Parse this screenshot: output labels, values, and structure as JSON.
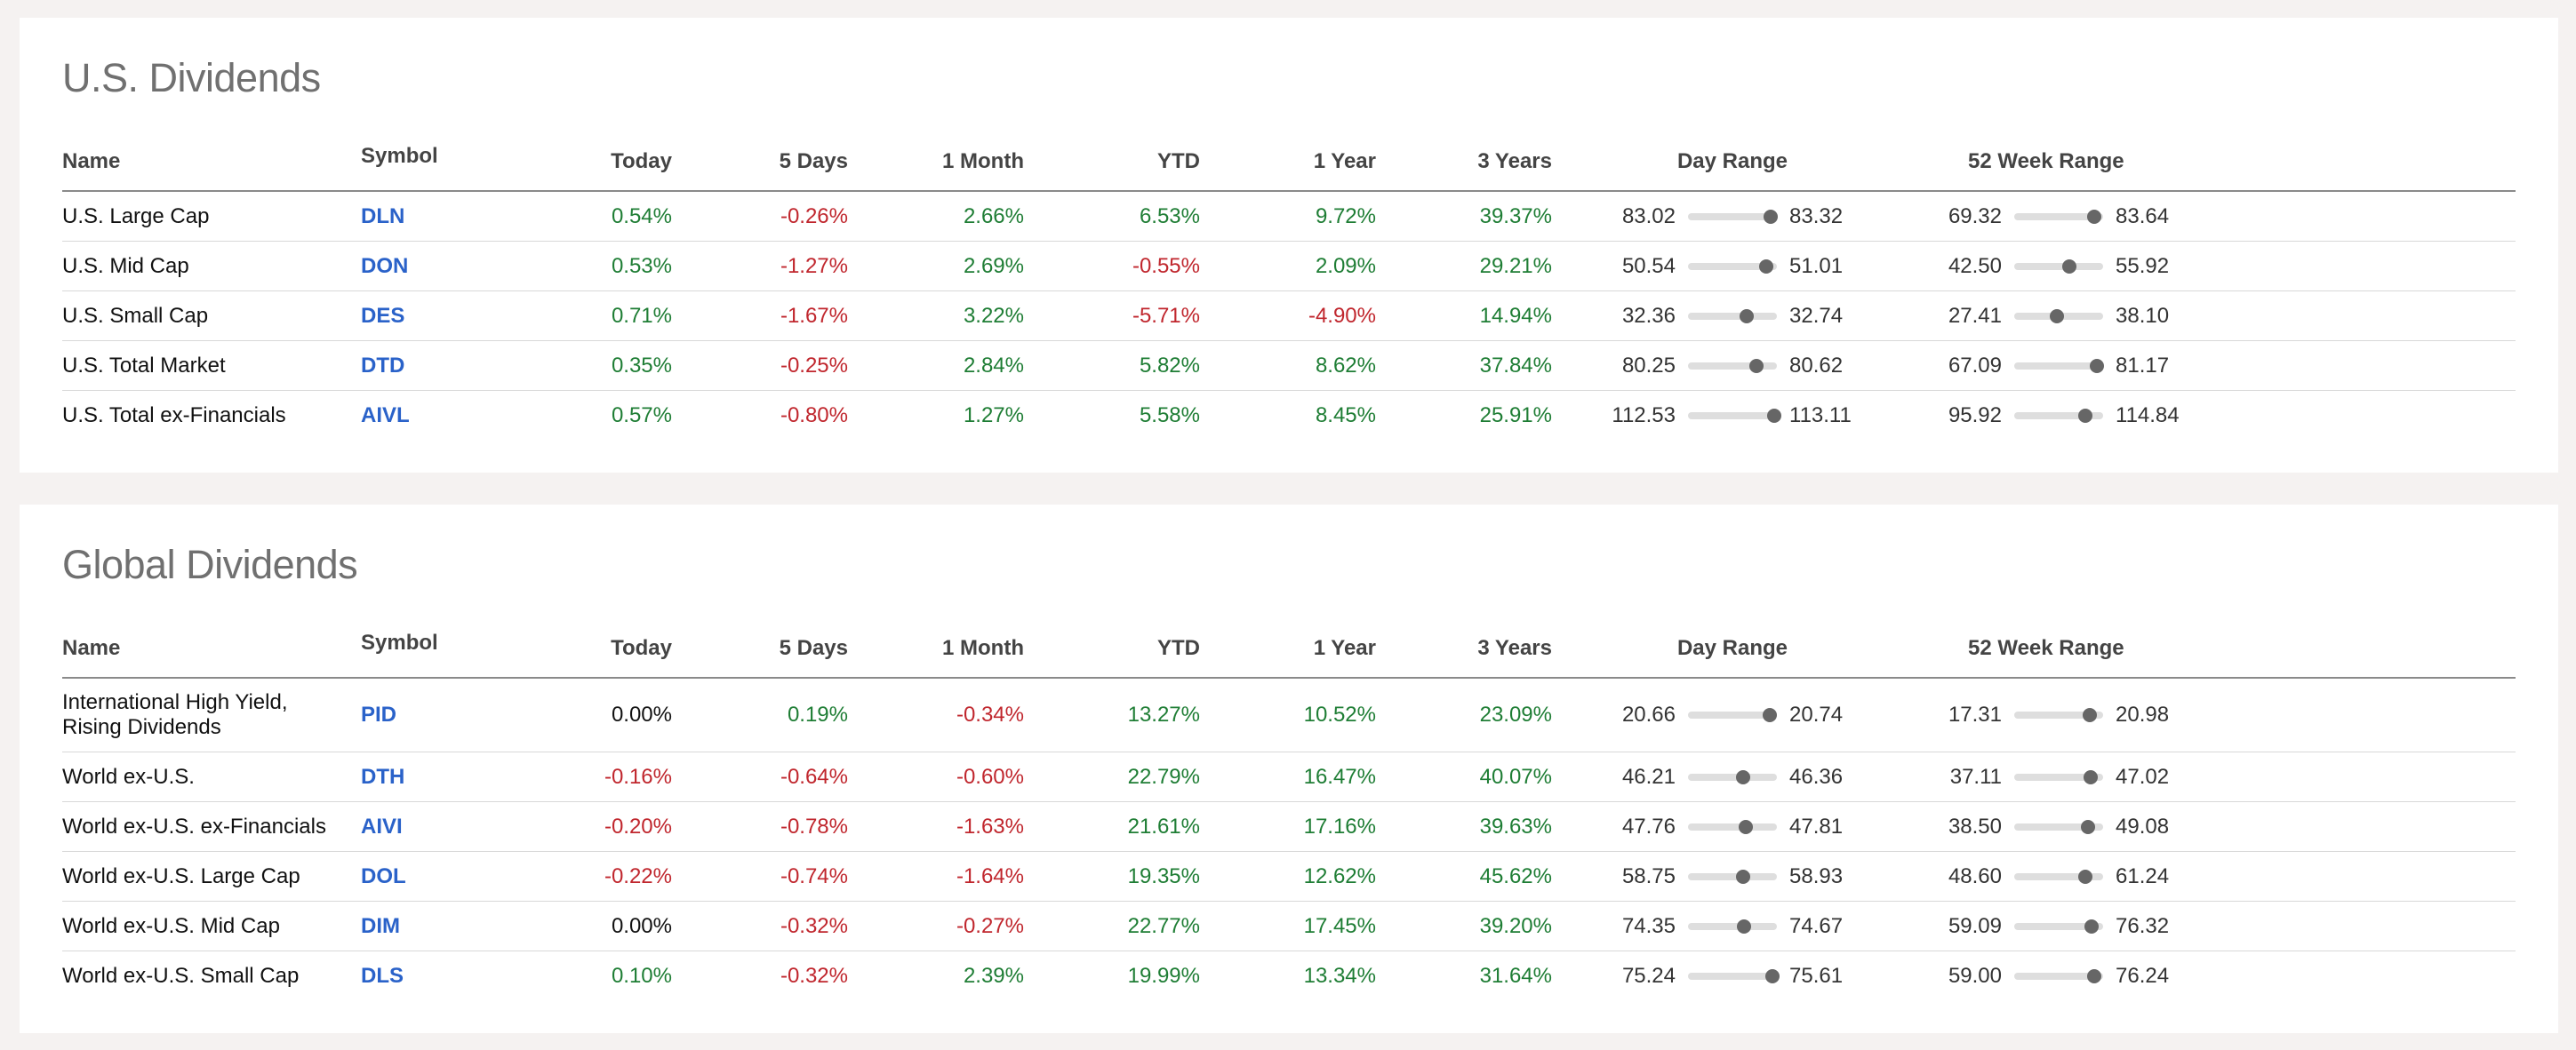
{
  "columns": [
    "Name",
    "Symbol",
    "Today",
    "5 Days",
    "1 Month",
    "YTD",
    "1 Year",
    "3 Years",
    "Day Range",
    "52 Week Range"
  ],
  "sections": [
    {
      "title": "U.S. Dividends",
      "rows": [
        {
          "name": "U.S. Large Cap",
          "symbol": "DLN",
          "today": "0.54%",
          "d5": "-0.26%",
          "m1": "2.66%",
          "ytd": "6.53%",
          "y1": "9.72%",
          "y3": "39.37%",
          "day_low": "83.02",
          "day_high": "83.32",
          "day_pos": 0.93,
          "wk_low": "69.32",
          "wk_high": "83.64",
          "wk_pos": 0.9
        },
        {
          "name": "U.S. Mid Cap",
          "symbol": "DON",
          "today": "0.53%",
          "d5": "-1.27%",
          "m1": "2.69%",
          "ytd": "-0.55%",
          "y1": "2.09%",
          "y3": "29.21%",
          "day_low": "50.54",
          "day_high": "51.01",
          "day_pos": 0.88,
          "wk_low": "42.50",
          "wk_high": "55.92",
          "wk_pos": 0.62
        },
        {
          "name": "U.S. Small Cap",
          "symbol": "DES",
          "today": "0.71%",
          "d5": "-1.67%",
          "m1": "3.22%",
          "ytd": "-5.71%",
          "y1": "-4.90%",
          "y3": "14.94%",
          "day_low": "32.36",
          "day_high": "32.74",
          "day_pos": 0.66,
          "wk_low": "27.41",
          "wk_high": "38.10",
          "wk_pos": 0.48
        },
        {
          "name": "U.S. Total Market",
          "symbol": "DTD",
          "today": "0.35%",
          "d5": "-0.25%",
          "m1": "2.84%",
          "ytd": "5.82%",
          "y1": "8.62%",
          "y3": "37.84%",
          "day_low": "80.25",
          "day_high": "80.62",
          "day_pos": 0.77,
          "wk_low": "67.09",
          "wk_high": "81.17",
          "wk_pos": 0.93
        },
        {
          "name": "U.S. Total ex-Financials",
          "symbol": "AIVL",
          "today": "0.57%",
          "d5": "-0.80%",
          "m1": "1.27%",
          "ytd": "5.58%",
          "y1": "8.45%",
          "y3": "25.91%",
          "day_low": "112.53",
          "day_high": "113.11",
          "day_pos": 0.97,
          "wk_low": "95.92",
          "wk_high": "114.84",
          "wk_pos": 0.8
        }
      ]
    },
    {
      "title": "Global Dividends",
      "rows": [
        {
          "name": "International High Yield, Rising Dividends",
          "symbol": "PID",
          "today": "0.00%",
          "d5": "0.19%",
          "m1": "-0.34%",
          "ytd": "13.27%",
          "y1": "10.52%",
          "y3": "23.09%",
          "day_low": "20.66",
          "day_high": "20.74",
          "day_pos": 0.92,
          "wk_low": "17.31",
          "wk_high": "20.98",
          "wk_pos": 0.85
        },
        {
          "name": "World ex-U.S.",
          "symbol": "DTH",
          "today": "-0.16%",
          "d5": "-0.64%",
          "m1": "-0.60%",
          "ytd": "22.79%",
          "y1": "16.47%",
          "y3": "40.07%",
          "day_low": "46.21",
          "day_high": "46.36",
          "day_pos": 0.62,
          "wk_low": "37.11",
          "wk_high": "47.02",
          "wk_pos": 0.86
        },
        {
          "name": "World ex-U.S. ex-Financials",
          "symbol": "AIVI",
          "today": "-0.20%",
          "d5": "-0.78%",
          "m1": "-1.63%",
          "ytd": "21.61%",
          "y1": "17.16%",
          "y3": "39.63%",
          "day_low": "47.76",
          "day_high": "47.81",
          "day_pos": 0.65,
          "wk_low": "38.50",
          "wk_high": "49.08",
          "wk_pos": 0.83
        },
        {
          "name": "World ex-U.S. Large Cap",
          "symbol": "DOL",
          "today": "-0.22%",
          "d5": "-0.74%",
          "m1": "-1.64%",
          "ytd": "19.35%",
          "y1": "12.62%",
          "y3": "45.62%",
          "day_low": "58.75",
          "day_high": "58.93",
          "day_pos": 0.62,
          "wk_low": "48.60",
          "wk_high": "61.24",
          "wk_pos": 0.8
        },
        {
          "name": "World ex-U.S. Mid Cap",
          "symbol": "DIM",
          "today": "0.00%",
          "d5": "-0.32%",
          "m1": "-0.27%",
          "ytd": "22.77%",
          "y1": "17.45%",
          "y3": "39.20%",
          "day_low": "74.35",
          "day_high": "74.67",
          "day_pos": 0.63,
          "wk_low": "59.09",
          "wk_high": "76.32",
          "wk_pos": 0.87
        },
        {
          "name": "World ex-U.S. Small Cap",
          "symbol": "DLS",
          "today": "0.10%",
          "d5": "-0.32%",
          "m1": "2.39%",
          "ytd": "19.99%",
          "y1": "13.34%",
          "y3": "31.64%",
          "day_low": "75.24",
          "day_high": "75.61",
          "day_pos": 0.95,
          "wk_low": "59.00",
          "wk_high": "76.24",
          "wk_pos": 0.9
        }
      ]
    }
  ]
}
